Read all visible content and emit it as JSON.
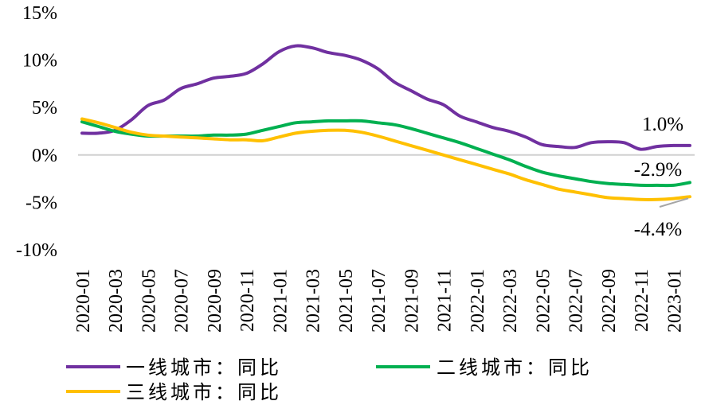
{
  "chart_data": {
    "type": "line",
    "title": "",
    "xlabel": "",
    "ylabel": "",
    "ylim": [
      -10,
      15
    ],
    "yticks": [
      15,
      10,
      5,
      0,
      -5,
      -10
    ],
    "ytick_labels": [
      "15%",
      "10%",
      "5%",
      "0%",
      "-5%",
      "-10%"
    ],
    "xtick_labels": [
      "2020-01",
      "2020-03",
      "2020-05",
      "2020-07",
      "2020-09",
      "2020-11",
      "2021-01",
      "2021-03",
      "2021-05",
      "2021-07",
      "2021-09",
      "2021-11",
      "2022-01",
      "2022-03",
      "2022-05",
      "2022-07",
      "2022-09",
      "2022-11",
      "2023-01"
    ],
    "x": [
      "2020-01",
      "2020-02",
      "2020-03",
      "2020-04",
      "2020-05",
      "2020-06",
      "2020-07",
      "2020-08",
      "2020-09",
      "2020-10",
      "2020-11",
      "2020-12",
      "2021-01",
      "2021-02",
      "2021-03",
      "2021-04",
      "2021-05",
      "2021-06",
      "2021-07",
      "2021-08",
      "2021-09",
      "2021-10",
      "2021-11",
      "2021-12",
      "2022-01",
      "2022-02",
      "2022-03",
      "2022-04",
      "2022-05",
      "2022-06",
      "2022-07",
      "2022-08",
      "2022-09",
      "2022-10",
      "2022-11",
      "2022-12",
      "2023-01",
      "2023-02"
    ],
    "grid": false,
    "legend_position": "bottom",
    "series": [
      {
        "name": "一线城市：同比",
        "color": "#7030A0",
        "values": [
          2.3,
          2.3,
          2.6,
          3.7,
          5.2,
          5.8,
          7.0,
          7.5,
          8.1,
          8.3,
          8.6,
          9.6,
          10.9,
          11.5,
          11.3,
          10.8,
          10.5,
          10.0,
          9.1,
          7.7,
          6.8,
          5.9,
          5.3,
          4.1,
          3.5,
          2.9,
          2.5,
          1.9,
          1.1,
          0.9,
          0.8,
          1.3,
          1.4,
          1.3,
          0.6,
          0.9,
          1.0,
          1.0
        ]
      },
      {
        "name": "二线城市：同比",
        "color": "#00B050",
        "values": [
          3.5,
          3.0,
          2.5,
          2.2,
          2.0,
          2.0,
          2.0,
          2.0,
          2.1,
          2.1,
          2.2,
          2.6,
          3.0,
          3.4,
          3.5,
          3.6,
          3.6,
          3.6,
          3.4,
          3.2,
          2.8,
          2.3,
          1.8,
          1.3,
          0.7,
          0.1,
          -0.5,
          -1.2,
          -1.8,
          -2.2,
          -2.5,
          -2.8,
          -3.0,
          -3.1,
          -3.2,
          -3.2,
          -3.2,
          -2.9
        ]
      },
      {
        "name": "三线城市：同比",
        "color": "#FFC000",
        "values": [
          3.8,
          3.4,
          2.9,
          2.4,
          2.1,
          2.0,
          1.9,
          1.8,
          1.7,
          1.6,
          1.6,
          1.5,
          1.9,
          2.3,
          2.5,
          2.6,
          2.6,
          2.4,
          2.0,
          1.5,
          1.0,
          0.5,
          0.0,
          -0.5,
          -1.0,
          -1.5,
          -2.0,
          -2.6,
          -3.1,
          -3.6,
          -3.9,
          -4.2,
          -4.5,
          -4.6,
          -4.7,
          -4.7,
          -4.6,
          -4.4
        ]
      }
    ],
    "annotations": [
      {
        "text": "1.0%",
        "series": 0
      },
      {
        "text": "-2.9%",
        "series": 1
      },
      {
        "text": "-4.4%",
        "series": 2
      }
    ]
  }
}
